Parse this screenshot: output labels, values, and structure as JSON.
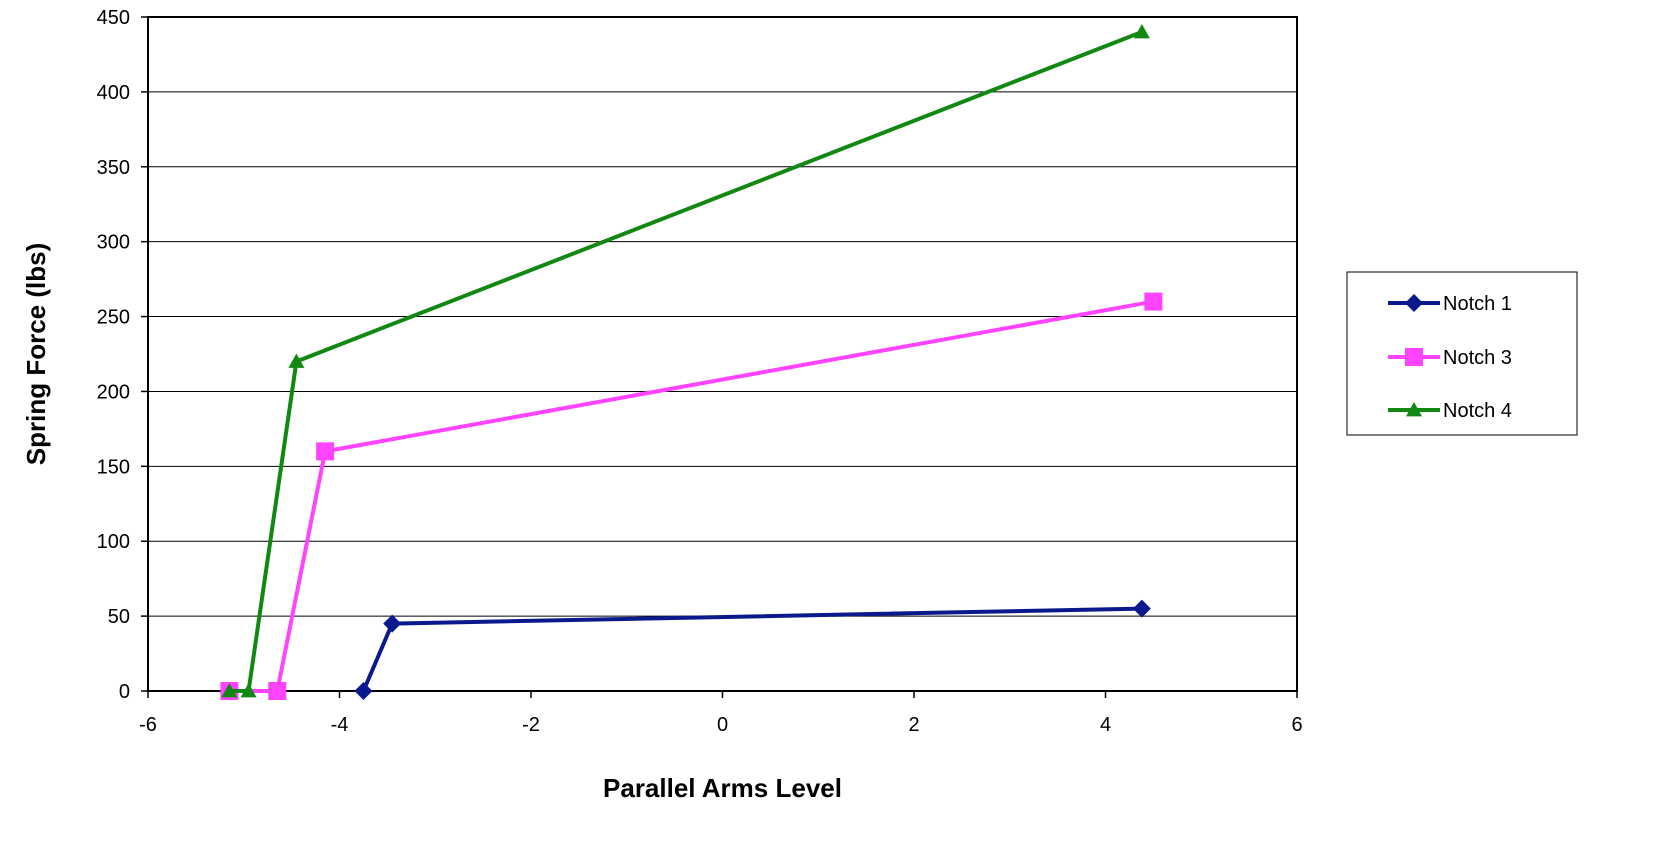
{
  "chart_data": {
    "type": "line",
    "title": "",
    "xlabel": "Parallel Arms Level",
    "ylabel": "Spring Force (lbs)",
    "xlim": [
      -6,
      6
    ],
    "ylim": [
      0,
      450
    ],
    "x_ticks": [
      -6,
      -4,
      -2,
      0,
      2,
      4,
      6
    ],
    "y_ticks": [
      0,
      50,
      100,
      150,
      200,
      250,
      300,
      350,
      400,
      450
    ],
    "x_tick_labels": [
      "-6",
      "-4",
      "-2",
      "0",
      "2",
      "4",
      "6"
    ],
    "y_tick_labels": [
      "0",
      "50",
      "100",
      "150",
      "200",
      "250",
      "300",
      "350",
      "400",
      "450"
    ],
    "grid": "horizontal",
    "legend_position": "right",
    "series": [
      {
        "name": "Notch 1",
        "color": "#0a1a8c",
        "marker": "diamond",
        "points": [
          {
            "x": -3.75,
            "y": 0
          },
          {
            "x": -3.45,
            "y": 45
          },
          {
            "x": 4.38,
            "y": 55
          }
        ]
      },
      {
        "name": "Notch 3",
        "color": "#ff44ff",
        "marker": "square",
        "points": [
          {
            "x": -5.15,
            "y": 0
          },
          {
            "x": -4.65,
            "y": 0
          },
          {
            "x": -4.15,
            "y": 160
          },
          {
            "x": 4.5,
            "y": 260
          }
        ]
      },
      {
        "name": "Notch 4",
        "color": "#118811",
        "marker": "triangle",
        "points": [
          {
            "x": -5.15,
            "y": 0
          },
          {
            "x": -4.95,
            "y": 0
          },
          {
            "x": -4.45,
            "y": 220
          },
          {
            "x": 4.38,
            "y": 440
          }
        ]
      }
    ]
  }
}
